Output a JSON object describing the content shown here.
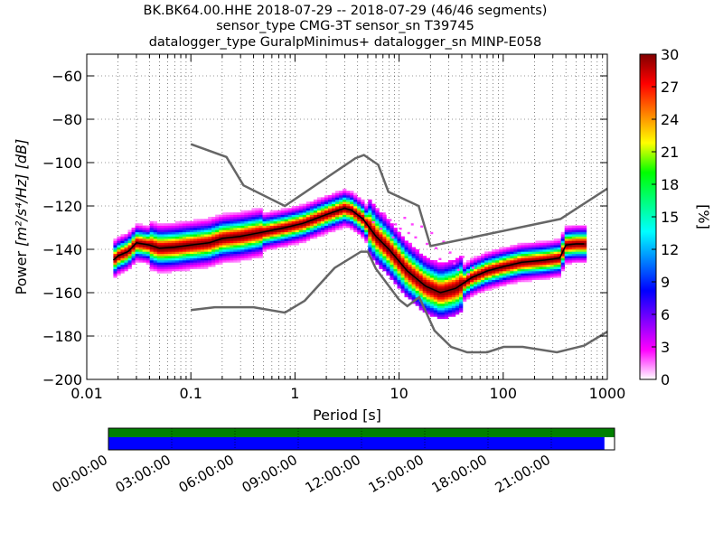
{
  "chart_data": {
    "type": "heatmap",
    "title_lines": [
      "BK.BK64.00.HHE   2018-07-29 -- 2018-07-29  (46/46 segments)",
      "sensor_type CMG-3T sensor_sn T39745",
      "datalogger_type GuralpMinimus+ datalogger_sn MINP-E058"
    ],
    "xlabel": "Period [s]",
    "ylabel_main": "Power",
    "ylabel_units": "[m²/s⁴/Hz] [dB]",
    "x_scale": "log",
    "xlim": [
      0.01,
      1000
    ],
    "ylim": [
      -200,
      -50
    ],
    "x_ticks": [
      {
        "v": 0.01,
        "label": "0.01"
      },
      {
        "v": 0.1,
        "label": "0.1"
      },
      {
        "v": 1,
        "label": "1"
      },
      {
        "v": 10,
        "label": "10"
      },
      {
        "v": 100,
        "label": "100"
      },
      {
        "v": 1000,
        "label": "1000"
      }
    ],
    "y_ticks": [
      {
        "v": -60,
        "label": "−60"
      },
      {
        "v": -80,
        "label": "−80"
      },
      {
        "v": -100,
        "label": "−100"
      },
      {
        "v": -120,
        "label": "−120"
      },
      {
        "v": -140,
        "label": "−140"
      },
      {
        "v": -160,
        "label": "−160"
      },
      {
        "v": -180,
        "label": "−180"
      },
      {
        "v": -200,
        "label": "−200"
      }
    ],
    "grid": "dotted",
    "noise_model_high": [
      [
        0.1,
        -91.5
      ],
      [
        0.22,
        -97.4
      ],
      [
        0.32,
        -110.5
      ],
      [
        0.8,
        -120
      ],
      [
        3.8,
        -98
      ],
      [
        4.6,
        -96.5
      ],
      [
        6.3,
        -101
      ],
      [
        7.9,
        -113.5
      ],
      [
        15.4,
        -120
      ],
      [
        20,
        -138.5
      ],
      [
        354.8,
        -126
      ],
      [
        1000,
        -112
      ]
    ],
    "noise_model_low": [
      [
        0.1,
        -168
      ],
      [
        0.17,
        -166.7
      ],
      [
        0.4,
        -166.7
      ],
      [
        0.8,
        -169.2
      ],
      [
        1.24,
        -163.7
      ],
      [
        2.4,
        -148.6
      ],
      [
        4.3,
        -141.1
      ],
      [
        5,
        -141.1
      ],
      [
        6,
        -149
      ],
      [
        10,
        -163.2
      ],
      [
        12,
        -166.2
      ],
      [
        15.6,
        -162.1
      ],
      [
        21.9,
        -177.5
      ],
      [
        31.6,
        -185
      ],
      [
        45,
        -187.5
      ],
      [
        70,
        -187.5
      ],
      [
        101,
        -185
      ],
      [
        154,
        -185
      ],
      [
        328,
        -187.5
      ],
      [
        600,
        -184.4
      ],
      [
        1000,
        -178
      ]
    ],
    "mode_line": [
      [
        0.018,
        -145
      ],
      [
        0.02,
        -143
      ],
      [
        0.025,
        -141
      ],
      [
        0.03,
        -137
      ],
      [
        0.04,
        -138
      ],
      [
        0.05,
        -139.5
      ],
      [
        0.07,
        -139
      ],
      [
        0.1,
        -138
      ],
      [
        0.15,
        -137
      ],
      [
        0.2,
        -135
      ],
      [
        0.3,
        -134
      ],
      [
        0.5,
        -132
      ],
      [
        0.8,
        -130
      ],
      [
        1.2,
        -128
      ],
      [
        2,
        -124
      ],
      [
        3,
        -121
      ],
      [
        3.5,
        -122
      ],
      [
        4.5,
        -126
      ],
      [
        6,
        -134
      ],
      [
        8,
        -140
      ],
      [
        12,
        -150
      ],
      [
        18,
        -157
      ],
      [
        25,
        -160
      ],
      [
        35,
        -158
      ],
      [
        50,
        -153
      ],
      [
        70,
        -150
      ],
      [
        100,
        -148
      ],
      [
        150,
        -146
      ],
      [
        250,
        -145
      ],
      [
        350,
        -144
      ],
      [
        400,
        -138
      ],
      [
        500,
        -137.5
      ],
      [
        600,
        -137.5
      ]
    ],
    "colorbar": {
      "label": "[%]",
      "range": [
        0,
        30
      ],
      "ticks": [
        "0",
        "3",
        "6",
        "9",
        "12",
        "15",
        "18",
        "21",
        "24",
        "27",
        "30"
      ],
      "colors": [
        "#ffffff",
        "#ff00ff",
        "#8000ff",
        "#0000ff",
        "#0080ff",
        "#00ffff",
        "#00ff80",
        "#00ff00",
        "#ffff00",
        "#ff8000",
        "#ff0000",
        "#800000"
      ]
    },
    "coverage": {
      "ticks": [
        "00:00:00",
        "03:00:00",
        "06:00:00",
        "09:00:00",
        "12:00:00",
        "15:00:00",
        "18:00:00",
        "21:00:00"
      ],
      "data_fraction": 0.98,
      "psd_fraction": 1.0,
      "data_color": "#0000ff",
      "psd_color": "#008000"
    }
  }
}
